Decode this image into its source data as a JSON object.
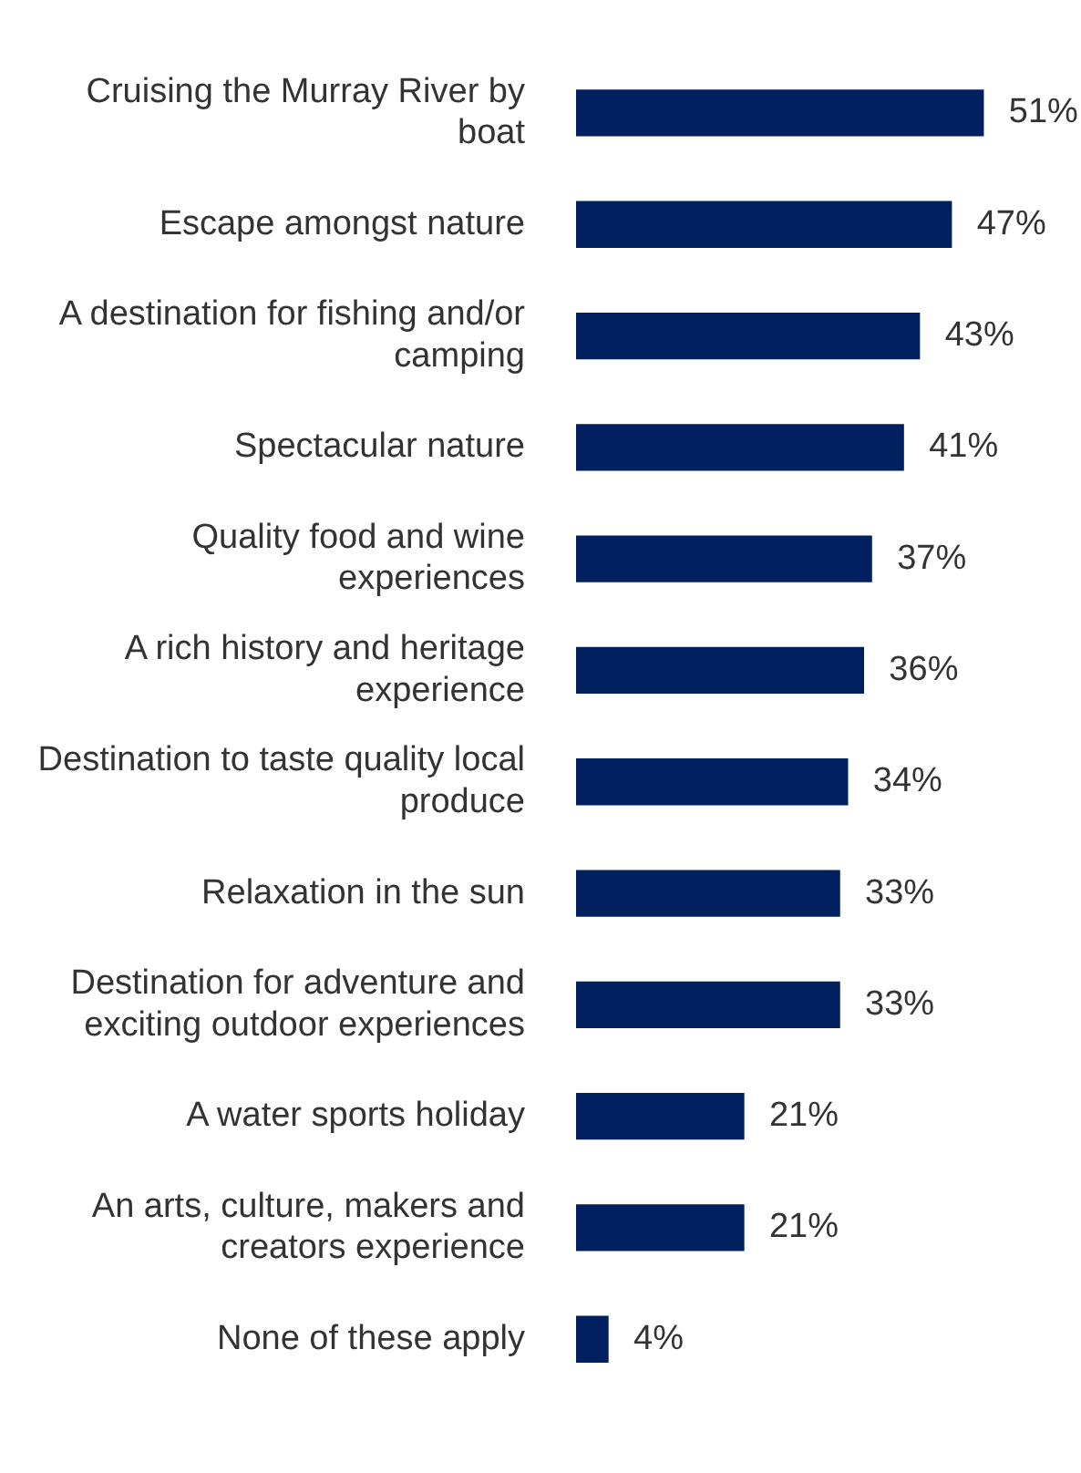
{
  "chart_data": {
    "type": "bar",
    "orientation": "horizontal",
    "categories": [
      "Cruising the Murray River by boat",
      "Escape amongst nature",
      "A destination for fishing and/or camping",
      "Spectacular nature",
      "Quality food and wine experiences",
      "A rich history and heritage experience",
      "Destination to taste quality local produce",
      "Relaxation in the sun",
      "Destination for adventure and exciting outdoor experiences",
      "A water sports holiday",
      "An arts, culture, makers and creators experience",
      "None of these apply"
    ],
    "values": [
      51,
      47,
      43,
      41,
      37,
      36,
      34,
      33,
      33,
      21,
      21,
      4
    ],
    "value_labels": [
      "51%",
      "47%",
      "43%",
      "41%",
      "37%",
      "36%",
      "34%",
      "33%",
      "33%",
      "21%",
      "21%",
      "4%"
    ],
    "color": "#002060",
    "grid": false,
    "legend": false
  }
}
